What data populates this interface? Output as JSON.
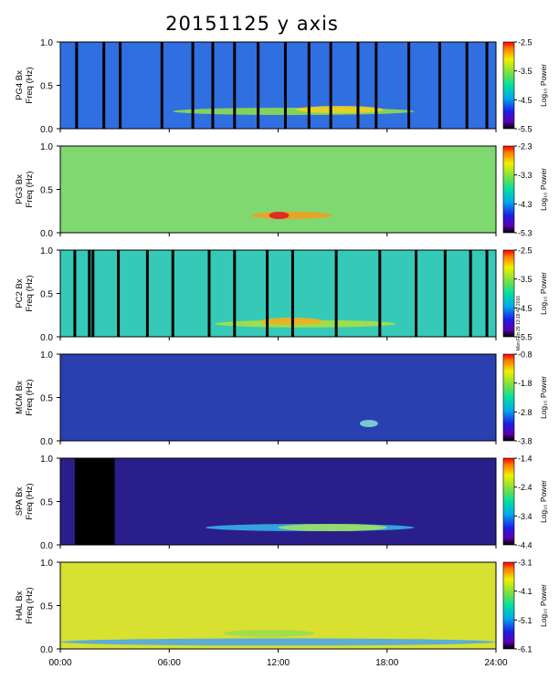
{
  "title": "20151125 y axis",
  "stamp": "Mon Feb 29 13:18:40 2016",
  "colorbar_label": "Log₁₀ Power",
  "chart_data": [
    {
      "type": "heatmap",
      "station": "PG4",
      "ylabel": "PG4 Bx Freq (Hz)",
      "ylabel_lines": [
        "PG4 Bx",
        "Freq (Hz)"
      ],
      "ylim": [
        0,
        1.0
      ],
      "yticks": [
        "1.0",
        "0.5",
        "0.0"
      ],
      "colorbar_range": [
        -5.5,
        -2.5
      ],
      "colorbar_ticks": [
        "-2.5",
        "-3.5",
        "-4.5",
        "-5.5"
      ],
      "base_color": "#2f6fe0",
      "data_gaps_hours": [
        0.9,
        2.4,
        3.3,
        5.6,
        7.3,
        8.4,
        9.6,
        10.9,
        12.4,
        13.7,
        14.9,
        16.4,
        17.4,
        19.2,
        20.9,
        22.4,
        23.5
      ],
      "features": [
        {
          "type": "band",
          "start_hour": 6.2,
          "end_hour": 19.5,
          "freq_hz": 0.2,
          "color": "#8fdc4a"
        },
        {
          "type": "band",
          "start_hour": 13.0,
          "end_hour": 17.8,
          "freq_hz": 0.22,
          "color": "#f0d020"
        }
      ]
    },
    {
      "type": "heatmap",
      "station": "PG3",
      "ylabel": "PG3 Bx Freq (Hz)",
      "ylabel_lines": [
        "PG3 Bx",
        "Freq (Hz)"
      ],
      "ylim": [
        0,
        1.0
      ],
      "yticks": [
        "1.0",
        "0.5",
        "0.0"
      ],
      "colorbar_range": [
        -5.3,
        -2.3
      ],
      "colorbar_ticks": [
        "-2.3",
        "-3.3",
        "-4.3",
        "-5.3"
      ],
      "base_color": "#7fd870",
      "data_gaps_hours": [],
      "features": [
        {
          "type": "band",
          "start_hour": 10.5,
          "end_hour": 15.0,
          "freq_hz": 0.2,
          "color": "#f0a020"
        },
        {
          "type": "band",
          "start_hour": 11.5,
          "end_hour": 12.6,
          "freq_hz": 0.2,
          "color": "#e02020"
        }
      ]
    },
    {
      "type": "heatmap",
      "station": "PC2",
      "ylabel": "PC2 Bx Freq (Hz)",
      "ylabel_lines": [
        "PC2 Bx",
        "Freq (Hz)"
      ],
      "ylim": [
        0,
        1.0
      ],
      "yticks": [
        "1.0",
        "0.5",
        "0.0"
      ],
      "colorbar_range": [
        -5.5,
        -2.5
      ],
      "colorbar_ticks": [
        "-2.5",
        "-3.5",
        "-4.5",
        "-5.5"
      ],
      "base_color": "#35c9b8",
      "data_gaps_hours": [
        0.8,
        1.6,
        1.8,
        3.2,
        4.8,
        6.2,
        8.2,
        9.6,
        11.4,
        12.8,
        15.2,
        17.6,
        19.6,
        21.2,
        22.6,
        23.5
      ],
      "features": [
        {
          "type": "band",
          "start_hour": 8.5,
          "end_hour": 18.5,
          "freq_hz": 0.15,
          "color": "#a8e040"
        },
        {
          "type": "band",
          "start_hour": 11.0,
          "end_hour": 14.5,
          "freq_hz": 0.18,
          "color": "#f0b020"
        }
      ]
    },
    {
      "type": "heatmap",
      "station": "MCM",
      "ylabel": "MCM Bx Freq (Hz)",
      "ylabel_lines": [
        "MCM Bx",
        "Freq (Hz)"
      ],
      "ylim": [
        0,
        1.0
      ],
      "yticks": [
        "1.0",
        "0.5",
        "0.0"
      ],
      "colorbar_range": [
        -3.8,
        -0.8
      ],
      "colorbar_ticks": [
        "-0.8",
        "-1.8",
        "-2.8",
        "-3.8"
      ],
      "base_color": "#2a3fb0",
      "data_gaps_hours": [],
      "features": [
        {
          "type": "band",
          "start_hour": 16.5,
          "end_hour": 17.5,
          "freq_hz": 0.2,
          "color": "#7fd8d0"
        }
      ]
    },
    {
      "type": "heatmap",
      "station": "SPA",
      "ylabel": "SPA Bx Freq (Hz)",
      "ylabel_lines": [
        "SPA Bx",
        "Freq (Hz)"
      ],
      "ylim": [
        0,
        1.0
      ],
      "yticks": [
        "1.0",
        "0.5",
        "0.0"
      ],
      "colorbar_range": [
        -4.4,
        -1.4
      ],
      "colorbar_ticks": [
        "-1.4",
        "-2.4",
        "-3.4",
        "-4.4"
      ],
      "base_color": "#2a1f8a",
      "data_gaps_hours": [],
      "no_data_hours": [
        0.8,
        3.0
      ],
      "features": [
        {
          "type": "band",
          "start_hour": 8.0,
          "end_hour": 19.5,
          "freq_hz": 0.2,
          "color": "#35b0e8"
        },
        {
          "type": "band",
          "start_hour": 12.0,
          "end_hour": 18.0,
          "freq_hz": 0.2,
          "color": "#9ee060"
        }
      ]
    },
    {
      "type": "heatmap",
      "station": "HAL",
      "ylabel": "HAL Bx Freq (Hz)",
      "ylabel_lines": [
        "HAL Bx",
        "Freq (Hz)"
      ],
      "ylim": [
        0,
        1.0
      ],
      "yticks": [
        "1.0",
        "0.5",
        "0.0"
      ],
      "colorbar_range": [
        -6.1,
        -3.1
      ],
      "colorbar_ticks": [
        "-3.1",
        "-4.1",
        "-5.1",
        "-6.1"
      ],
      "base_color": "#d8e030",
      "data_gaps_hours": [],
      "features": [
        {
          "type": "band",
          "start_hour": 0.0,
          "end_hour": 24.0,
          "freq_hz": 0.08,
          "color": "#4fa8e8"
        },
        {
          "type": "band",
          "start_hour": 9.0,
          "end_hour": 14.0,
          "freq_hz": 0.18,
          "color": "#9edc50"
        }
      ]
    }
  ],
  "x_axis": {
    "xlim_hours": [
      0,
      24
    ],
    "xticks": [
      {
        "hour": 0,
        "label": "00:00"
      },
      {
        "hour": 6,
        "label": "06:00"
      },
      {
        "hour": 12,
        "label": "12:00"
      },
      {
        "hour": 18,
        "label": "18:00"
      },
      {
        "hour": 24,
        "label": "24:00"
      }
    ]
  }
}
